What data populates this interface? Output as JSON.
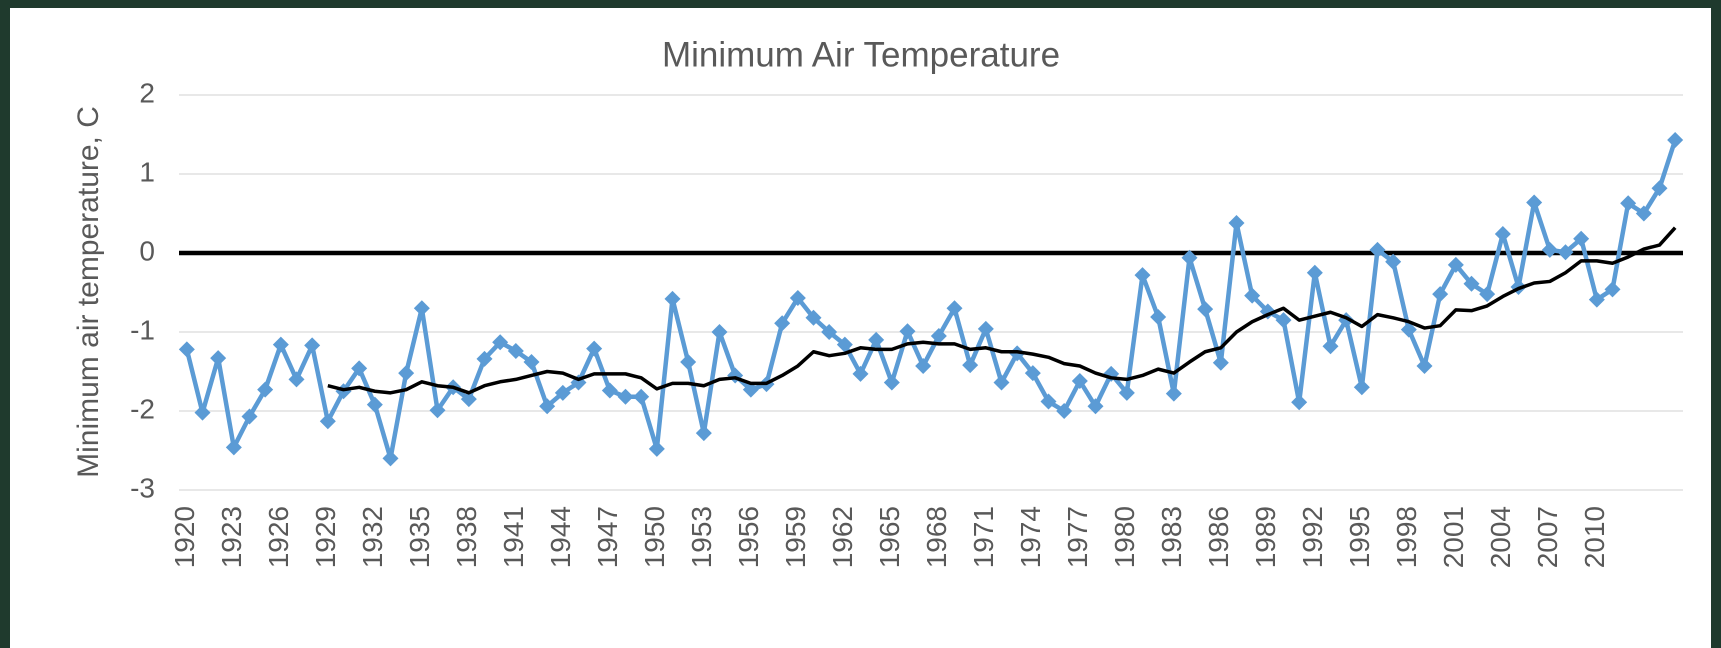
{
  "chart_data": {
    "type": "line",
    "title": "Minimum Air Temperature",
    "y_label": "Minimum air temperature, C",
    "categories": [
      "1920",
      null,
      null,
      "1923",
      null,
      null,
      "1926",
      null,
      null,
      "1929",
      null,
      null,
      "1932",
      null,
      null,
      "1935",
      null,
      null,
      "1938",
      null,
      null,
      "1941",
      null,
      null,
      "1944",
      null,
      null,
      "1947",
      null,
      null,
      "1950",
      null,
      null,
      "1953",
      null,
      null,
      "1956",
      null,
      null,
      "1959",
      null,
      null,
      "1962",
      null,
      null,
      "1965",
      null,
      null,
      "1968",
      null,
      null,
      "1971",
      null,
      null,
      "1974",
      null,
      null,
      "1977",
      null,
      null,
      "1980",
      null,
      null,
      "1983",
      null,
      null,
      "1986",
      null,
      null,
      "1989",
      null,
      null,
      "1992",
      null,
      null,
      "1995",
      null,
      null,
      "1998",
      null,
      null,
      "2001",
      null,
      null,
      "2004",
      null,
      null,
      "2007",
      null,
      null,
      "2010",
      null,
      null,
      null,
      null,
      null
    ],
    "series": [
      {
        "color": "#5b9bd5",
        "marker": "diamond",
        "values": [
          -1.22,
          -2.02,
          -1.33,
          -2.46,
          -2.07,
          -1.73,
          -1.16,
          -1.6,
          -1.17,
          -2.13,
          -1.75,
          -1.46,
          -1.92,
          -2.6,
          -1.52,
          -0.7,
          -1.99,
          -1.7,
          -1.85,
          -1.34,
          -1.13,
          -1.24,
          -1.38,
          -1.94,
          -1.77,
          -1.64,
          -1.21,
          -1.74,
          -1.82,
          -1.82,
          -2.48,
          -0.58,
          -1.38,
          -2.28,
          -1.0,
          -1.55,
          -1.73,
          -1.66,
          -0.89,
          -0.57,
          -0.82,
          -1.0,
          -1.16,
          -1.53,
          -1.1,
          -1.64,
          -0.99,
          -1.43,
          -1.05,
          -0.7,
          -1.42,
          -0.96,
          -1.64,
          -1.27,
          -1.52,
          -1.88,
          -2.0,
          -1.62,
          -1.94,
          -1.53,
          -1.77,
          -0.28,
          -0.81,
          -1.78,
          -0.06,
          -0.71,
          -1.39,
          0.38,
          -0.54,
          -0.74,
          -0.85,
          -1.89,
          -0.25,
          -1.18,
          -0.85,
          -1.7,
          0.04,
          -0.11,
          -0.97,
          -1.43,
          -0.52,
          -0.15,
          -0.39,
          -0.52,
          0.24,
          -0.43,
          0.64,
          0.04,
          0.01,
          0.18,
          -0.59,
          -0.46,
          0.63,
          0.5,
          0.82,
          1.43
        ]
      },
      {
        "color": "#000000",
        "marker": "none",
        "values": [
          null,
          null,
          null,
          null,
          null,
          null,
          null,
          null,
          null,
          -1.68,
          -1.73,
          -1.7,
          -1.75,
          -1.77,
          -1.73,
          -1.63,
          -1.68,
          -1.7,
          -1.77,
          -1.68,
          -1.63,
          -1.6,
          -1.55,
          -1.5,
          -1.52,
          -1.6,
          -1.53,
          -1.53,
          -1.53,
          -1.58,
          -1.72,
          -1.65,
          -1.65,
          -1.68,
          -1.6,
          -1.58,
          -1.65,
          -1.65,
          -1.55,
          -1.43,
          -1.25,
          -1.3,
          -1.27,
          -1.2,
          -1.22,
          -1.22,
          -1.15,
          -1.13,
          -1.15,
          -1.15,
          -1.22,
          -1.2,
          -1.25,
          -1.25,
          -1.28,
          -1.32,
          -1.4,
          -1.43,
          -1.52,
          -1.58,
          -1.6,
          -1.55,
          -1.47,
          -1.52,
          -1.38,
          -1.25,
          -1.2,
          -1.0,
          -0.87,
          -0.78,
          -0.7,
          -0.85,
          -0.8,
          -0.75,
          -0.82,
          -0.93,
          -0.78,
          -0.82,
          -0.87,
          -0.95,
          -0.92,
          -0.72,
          -0.73,
          -0.67,
          -0.55,
          -0.45,
          -0.38,
          -0.36,
          -0.25,
          -0.1,
          -0.1,
          -0.13,
          -0.05,
          0.05,
          0.1,
          0.32
        ]
      }
    ],
    "ylim": [
      -3,
      2
    ],
    "yticks": [
      -3,
      -2,
      -1,
      0,
      1,
      2
    ],
    "grid": true
  }
}
